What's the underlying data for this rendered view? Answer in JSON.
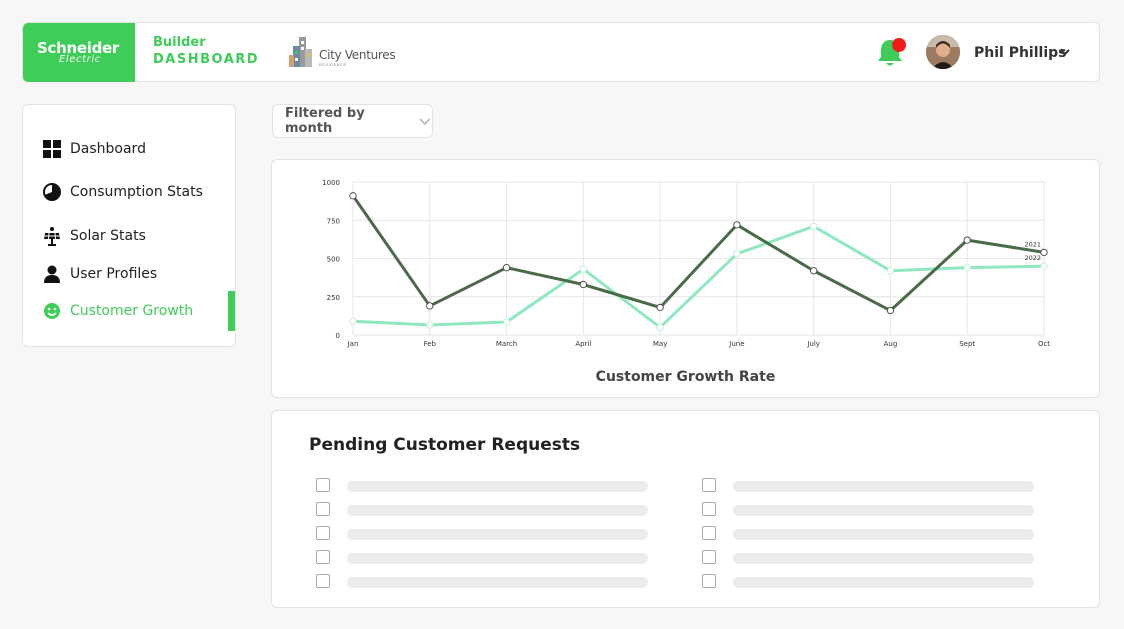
{
  "header": {
    "logo": {
      "line1": "Schneider",
      "line2": "Electric"
    },
    "brand": {
      "line1": "Builder",
      "line2": "DASHBOARD"
    },
    "partner": {
      "name": "City Ventures",
      "sub": "RESIDENCE"
    },
    "user": {
      "name": "Phil Phillips"
    },
    "colors": {
      "accent": "#3dcd58",
      "notification": "#f21b1b"
    }
  },
  "sidebar": {
    "items": [
      {
        "label": "Dashboard",
        "icon": "grid-icon"
      },
      {
        "label": "Consumption Stats",
        "icon": "pie-chart-icon"
      },
      {
        "label": "Solar Stats",
        "icon": "solar-panel-icon"
      },
      {
        "label": "User Profiles",
        "icon": "user-icon"
      },
      {
        "label": "Customer Growth",
        "icon": "smiley-icon",
        "active": true
      }
    ]
  },
  "filter": {
    "label": "Filtered by month"
  },
  "chart_data": {
    "type": "line",
    "title": "Customer Growth Rate",
    "categories": [
      "Jan",
      "Feb",
      "March",
      "April",
      "May",
      "June",
      "July",
      "Aug",
      "Sept",
      "Oct"
    ],
    "yticks": [
      "1000",
      "750",
      "500",
      "250",
      "0"
    ],
    "ylim": [
      0,
      1000
    ],
    "grid": true,
    "series": [
      {
        "name": "2021",
        "color": "#4a6b47",
        "values": [
          910,
          190,
          440,
          330,
          180,
          720,
          420,
          160,
          620,
          540
        ]
      },
      {
        "name": "2022",
        "color": "#8ee8c0",
        "values": [
          90,
          65,
          85,
          430,
          50,
          530,
          710,
          420,
          440,
          450
        ]
      }
    ]
  },
  "requests": {
    "title": "Pending Customer Requests",
    "rows_left": 5,
    "rows_right": 5
  }
}
